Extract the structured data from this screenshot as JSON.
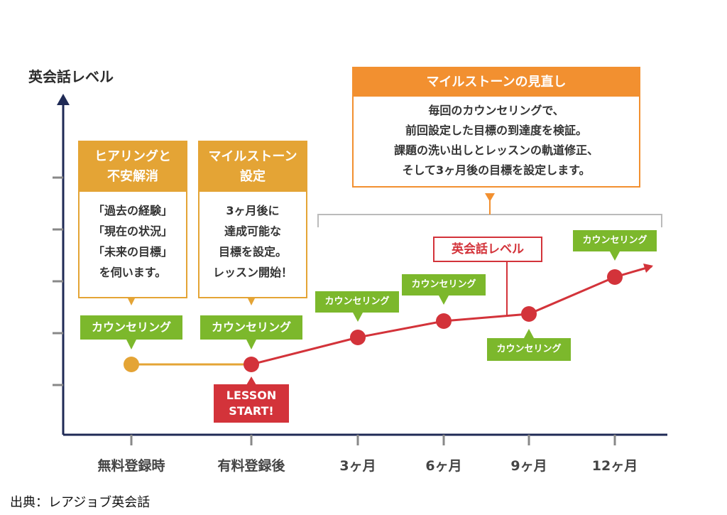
{
  "axis": {
    "y_label": "英会話レベル",
    "x_ticks": [
      "無料登録時",
      "有料登録後",
      "3ヶ月",
      "6ヶ月",
      "9ヶ月",
      "12ヶ月"
    ]
  },
  "boxes": [
    {
      "title_lines": [
        "ヒアリングと",
        "不安解消"
      ],
      "body_lines": [
        "「過去の経験」",
        "「現在の状況」",
        "「未来の目標」",
        "を伺います。"
      ]
    },
    {
      "title_lines": [
        "マイルストーン",
        "設定"
      ],
      "body_lines": [
        "3ヶ月後に",
        "達成可能な",
        "目標を設定。",
        "レッスン開始！"
      ]
    }
  ],
  "milestone_review": {
    "title": "マイルストーンの見直し",
    "lines": [
      "毎回のカウンセリングで、",
      "前回設定した目標の到達度を検証。",
      "課題の洗い出しとレッスンの軌道修正、",
      "そして3ヶ月後の目標を設定します。"
    ]
  },
  "counseling_label": "カウンセリング",
  "level_label": "英会話レベル",
  "lesson_start": [
    "LESSON",
    "START!"
  ],
  "source": "出典：レアジョブ英会話",
  "colors": {
    "axis": "#1f2a55",
    "gold": "#e4a435",
    "orange": "#f29030",
    "red": "#d3333a",
    "green": "#7cb82c",
    "gray": "#bbbbbb"
  }
}
